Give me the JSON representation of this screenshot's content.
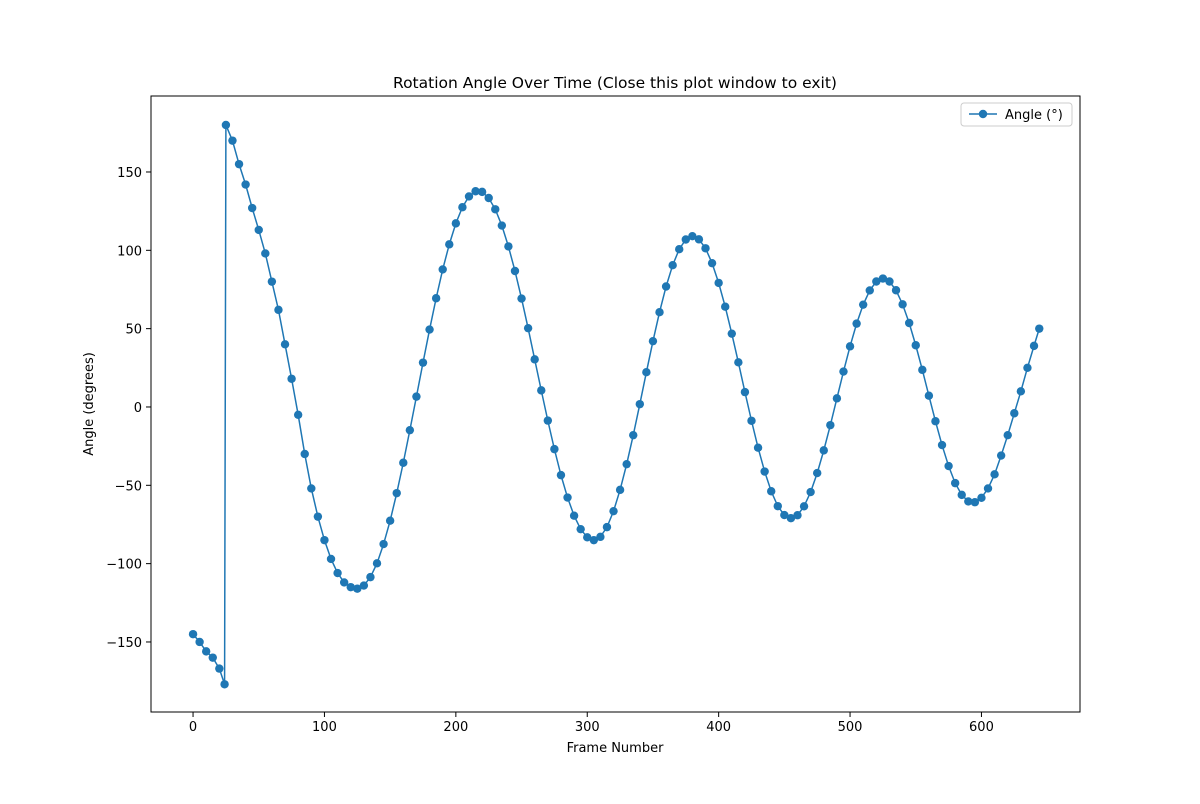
{
  "chart_data": {
    "type": "line",
    "title": "Rotation Angle Over Time (Close this plot window to exit)",
    "x_label": "Frame Number",
    "y_label": "Angle (degrees)",
    "legend": "upper right",
    "grid": false,
    "xlim": [
      -32,
      675
    ],
    "ylim": [
      -194.7,
      198.5
    ],
    "xticks": [
      0,
      100,
      200,
      300,
      400,
      500,
      600
    ],
    "yticks": [
      {
        "value": -150,
        "label": "−150"
      },
      {
        "value": -100,
        "label": "−100"
      },
      {
        "value": -50,
        "label": "−50"
      },
      0,
      50,
      100,
      150
    ],
    "x": [
      0,
      5,
      10,
      15,
      20,
      24,
      25,
      30,
      35,
      40,
      45,
      50,
      55,
      60,
      65,
      70,
      75,
      80,
      85,
      90,
      95,
      100,
      105,
      110,
      115,
      120,
      125,
      130,
      135,
      140,
      145,
      150,
      155,
      160,
      165,
      170,
      175,
      180,
      185,
      190,
      195,
      200,
      205,
      210,
      215,
      220,
      225,
      230,
      235,
      240,
      245,
      250,
      255,
      260,
      265,
      270,
      275,
      280,
      285,
      290,
      295,
      300,
      305,
      310,
      315,
      320,
      325,
      330,
      335,
      340,
      345,
      350,
      355,
      360,
      365,
      370,
      375,
      380,
      385,
      390,
      395,
      400,
      405,
      410,
      415,
      420,
      425,
      430,
      435,
      440,
      445,
      450,
      455,
      460,
      465,
      470,
      475,
      480,
      485,
      490,
      495,
      500,
      505,
      510,
      515,
      520,
      525,
      530,
      535,
      540,
      545,
      550,
      555,
      560,
      565,
      570,
      575,
      580,
      585,
      590,
      595,
      600,
      605,
      610,
      615,
      620,
      625,
      630,
      635,
      640,
      644
    ],
    "series": [
      {
        "name": "Angle (°)",
        "color": "#1f77b4",
        "values": [
          -145,
          -150,
          -156,
          -160,
          -167,
          -177,
          180,
          170,
          155,
          142,
          127,
          113,
          98,
          80,
          62,
          40,
          18,
          -5,
          -30,
          -52,
          -70,
          -85,
          -97,
          -106,
          -112,
          -115,
          -116,
          -114,
          -108.6,
          -99.8,
          -87.5,
          -72.6,
          -55,
          -35.6,
          -14.8,
          6.6,
          28.3,
          49.4,
          69.4,
          87.8,
          103.8,
          117.2,
          127.5,
          134.4,
          137.7,
          137.3,
          133.4,
          126.2,
          115.8,
          102.5,
          86.8,
          69.2,
          50.3,
          30.4,
          10.6,
          -8.7,
          -26.9,
          -43.5,
          -57.8,
          -69.4,
          -78,
          -83.2,
          -85,
          -82.9,
          -76.7,
          -66.5,
          -52.9,
          -36.5,
          -18,
          1.8,
          22.2,
          42,
          60.5,
          76.9,
          90.5,
          100.7,
          106.9,
          109,
          107,
          101.3,
          91.8,
          79.2,
          64,
          46.8,
          28.5,
          9.5,
          -8.8,
          -26,
          -41.2,
          -53.8,
          -63.3,
          -69,
          -71,
          -69.1,
          -63.4,
          -54.3,
          -42.2,
          -27.7,
          -11.6,
          5.5,
          22.6,
          38.7,
          53.2,
          65.3,
          74.4,
          80.1,
          82,
          80.1,
          74.5,
          65.5,
          53.6,
          39.4,
          23.7,
          7.2,
          -9.1,
          -24.3,
          -37.7,
          -48.6,
          -56.1,
          -60.3,
          -60.8,
          -58,
          -52,
          -43,
          -31,
          -18,
          -4,
          10,
          25,
          39,
          50
        ]
      }
    ]
  }
}
